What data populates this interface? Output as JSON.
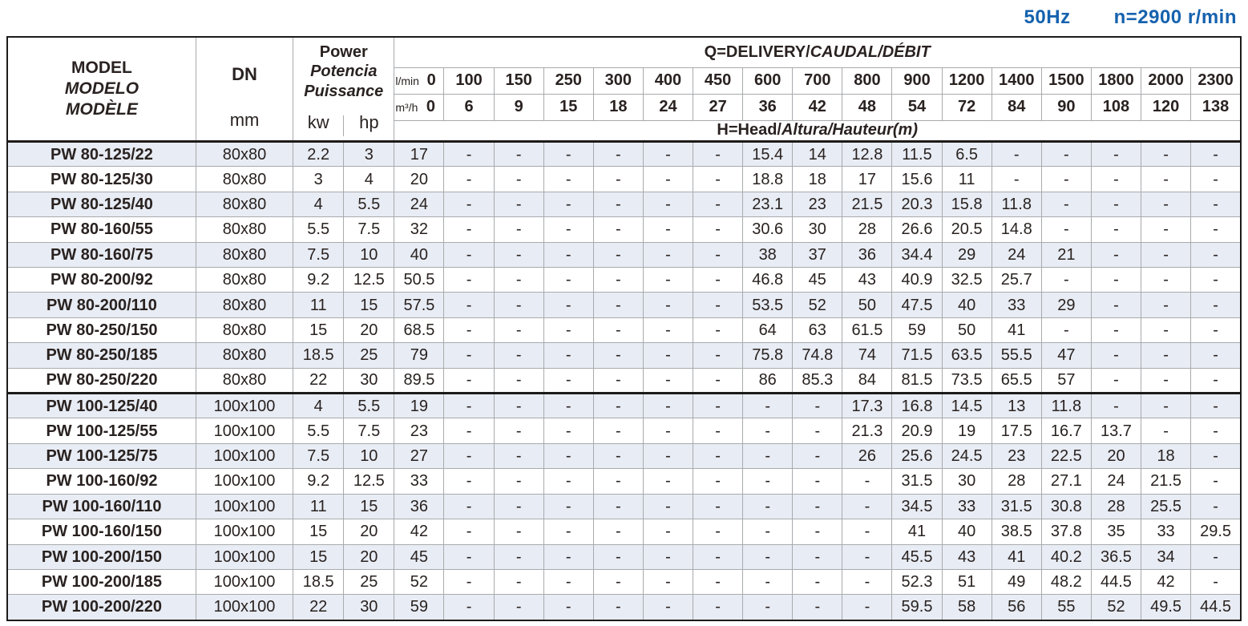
{
  "page": {
    "frequency": "50Hz",
    "speed": "n=2900 r/min"
  },
  "colors": {
    "accent_blue": "#1562ae",
    "row_shade": "#e8ecf4",
    "gridline": "#a8aaad",
    "border": "#1d1b1a"
  },
  "table": {
    "header": {
      "model": [
        "MODEL",
        "MODELO",
        "MODÈLE"
      ],
      "dn_label": "DN",
      "dn_unit": "mm",
      "power": [
        "Power",
        "Potencia",
        "Puissance"
      ],
      "power_units": [
        "kw",
        "hp"
      ],
      "q_title_plain": "Q=DELIVERY/",
      "q_title_italic": "CAUDAL/DÉBIT",
      "h_title_plain": "H=Head/",
      "h_title_italic": "Altura/Hauteur(m)",
      "lmin_label": "l/min",
      "m3h_label": "m³/h",
      "lmin_values": [
        "0",
        "100",
        "150",
        "250",
        "300",
        "400",
        "450",
        "600",
        "700",
        "800",
        "900",
        "1200",
        "1400",
        "1500",
        "1800",
        "2000",
        "2300"
      ],
      "m3h_values": [
        "0",
        "6",
        "9",
        "15",
        "18",
        "24",
        "27",
        "36",
        "42",
        "48",
        "54",
        "72",
        "84",
        "90",
        "108",
        "120",
        "138"
      ]
    },
    "rows": [
      {
        "model": "PW 80-125/22",
        "dn": "80x80",
        "kw": "2.2",
        "hp": "3",
        "head": [
          "17",
          "-",
          "-",
          "-",
          "-",
          "-",
          "-",
          "15.4",
          "14",
          "12.8",
          "11.5",
          "6.5",
          "-",
          "-",
          "-",
          "-",
          "-"
        ]
      },
      {
        "model": "PW 80-125/30",
        "dn": "80x80",
        "kw": "3",
        "hp": "4",
        "head": [
          "20",
          "-",
          "-",
          "-",
          "-",
          "-",
          "-",
          "18.8",
          "18",
          "17",
          "15.6",
          "11",
          "-",
          "-",
          "-",
          "-",
          "-"
        ]
      },
      {
        "model": "PW 80-125/40",
        "dn": "80x80",
        "kw": "4",
        "hp": "5.5",
        "head": [
          "24",
          "-",
          "-",
          "-",
          "-",
          "-",
          "-",
          "23.1",
          "23",
          "21.5",
          "20.3",
          "15.8",
          "11.8",
          "-",
          "-",
          "-",
          "-"
        ]
      },
      {
        "model": "PW 80-160/55",
        "dn": "80x80",
        "kw": "5.5",
        "hp": "7.5",
        "head": [
          "32",
          "-",
          "-",
          "-",
          "-",
          "-",
          "-",
          "30.6",
          "30",
          "28",
          "26.6",
          "20.5",
          "14.8",
          "-",
          "-",
          "-",
          "-"
        ]
      },
      {
        "model": "PW 80-160/75",
        "dn": "80x80",
        "kw": "7.5",
        "hp": "10",
        "head": [
          "40",
          "-",
          "-",
          "-",
          "-",
          "-",
          "-",
          "38",
          "37",
          "36",
          "34.4",
          "29",
          "24",
          "21",
          "-",
          "-",
          "-"
        ]
      },
      {
        "model": "PW 80-200/92",
        "dn": "80x80",
        "kw": "9.2",
        "hp": "12.5",
        "head": [
          "50.5",
          "-",
          "-",
          "-",
          "-",
          "-",
          "-",
          "46.8",
          "45",
          "43",
          "40.9",
          "32.5",
          "25.7",
          "-",
          "-",
          "-",
          "-"
        ]
      },
      {
        "model": "PW 80-200/110",
        "dn": "80x80",
        "kw": "11",
        "hp": "15",
        "head": [
          "57.5",
          "-",
          "-",
          "-",
          "-",
          "-",
          "-",
          "53.5",
          "52",
          "50",
          "47.5",
          "40",
          "33",
          "29",
          "-",
          "-",
          "-"
        ]
      },
      {
        "model": "PW 80-250/150",
        "dn": "80x80",
        "kw": "15",
        "hp": "20",
        "head": [
          "68.5",
          "-",
          "-",
          "-",
          "-",
          "-",
          "-",
          "64",
          "63",
          "61.5",
          "59",
          "50",
          "41",
          "-",
          "-",
          "-",
          "-"
        ]
      },
      {
        "model": "PW 80-250/185",
        "dn": "80x80",
        "kw": "18.5",
        "hp": "25",
        "head": [
          "79",
          "-",
          "-",
          "-",
          "-",
          "-",
          "-",
          "75.8",
          "74.8",
          "74",
          "71.5",
          "63.5",
          "55.5",
          "47",
          "-",
          "-",
          "-"
        ]
      },
      {
        "model": "PW 80-250/220",
        "dn": "80x80",
        "kw": "22",
        "hp": "30",
        "head": [
          "89.5",
          "-",
          "-",
          "-",
          "-",
          "-",
          "-",
          "86",
          "85.3",
          "84",
          "81.5",
          "73.5",
          "65.5",
          "57",
          "-",
          "-",
          "-"
        ]
      },
      {
        "model": "PW 100-125/40",
        "dn": "100x100",
        "kw": "4",
        "hp": "5.5",
        "head": [
          "19",
          "-",
          "-",
          "-",
          "-",
          "-",
          "-",
          "-",
          "-",
          "17.3",
          "16.8",
          "14.5",
          "13",
          "11.8",
          "-",
          "-",
          "-"
        ]
      },
      {
        "model": "PW 100-125/55",
        "dn": "100x100",
        "kw": "5.5",
        "hp": "7.5",
        "head": [
          "23",
          "-",
          "-",
          "-",
          "-",
          "-",
          "-",
          "-",
          "-",
          "21.3",
          "20.9",
          "19",
          "17.5",
          "16.7",
          "13.7",
          "-",
          "-"
        ]
      },
      {
        "model": "PW 100-125/75",
        "dn": "100x100",
        "kw": "7.5",
        "hp": "10",
        "head": [
          "27",
          "-",
          "-",
          "-",
          "-",
          "-",
          "-",
          "-",
          "-",
          "26",
          "25.6",
          "24.5",
          "23",
          "22.5",
          "20",
          "18",
          "-"
        ]
      },
      {
        "model": "PW 100-160/92",
        "dn": "100x100",
        "kw": "9.2",
        "hp": "12.5",
        "head": [
          "33",
          "-",
          "-",
          "-",
          "-",
          "-",
          "-",
          "-",
          "-",
          "-",
          "31.5",
          "30",
          "28",
          "27.1",
          "24",
          "21.5",
          "-"
        ]
      },
      {
        "model": "PW 100-160/110",
        "dn": "100x100",
        "kw": "11",
        "hp": "15",
        "head": [
          "36",
          "-",
          "-",
          "-",
          "-",
          "-",
          "-",
          "-",
          "-",
          "-",
          "34.5",
          "33",
          "31.5",
          "30.8",
          "28",
          "25.5",
          "-"
        ]
      },
      {
        "model": "PW 100-160/150",
        "dn": "100x100",
        "kw": "15",
        "hp": "20",
        "head": [
          "42",
          "-",
          "-",
          "-",
          "-",
          "-",
          "-",
          "-",
          "-",
          "-",
          "41",
          "40",
          "38.5",
          "37.8",
          "35",
          "33",
          "29.5"
        ]
      },
      {
        "model": "PW 100-200/150",
        "dn": "100x100",
        "kw": "15",
        "hp": "20",
        "head": [
          "45",
          "-",
          "-",
          "-",
          "-",
          "-",
          "-",
          "-",
          "-",
          "-",
          "45.5",
          "43",
          "41",
          "40.2",
          "36.5",
          "34",
          "-"
        ]
      },
      {
        "model": "PW 100-200/185",
        "dn": "100x100",
        "kw": "18.5",
        "hp": "25",
        "head": [
          "52",
          "-",
          "-",
          "-",
          "-",
          "-",
          "-",
          "-",
          "-",
          "-",
          "52.3",
          "51",
          "49",
          "48.2",
          "44.5",
          "42",
          "-"
        ]
      },
      {
        "model": "PW 100-200/220",
        "dn": "100x100",
        "kw": "22",
        "hp": "30",
        "head": [
          "59",
          "-",
          "-",
          "-",
          "-",
          "-",
          "-",
          "-",
          "-",
          "-",
          "59.5",
          "58",
          "56",
          "55",
          "52",
          "49.5",
          "44.5"
        ]
      }
    ]
  }
}
